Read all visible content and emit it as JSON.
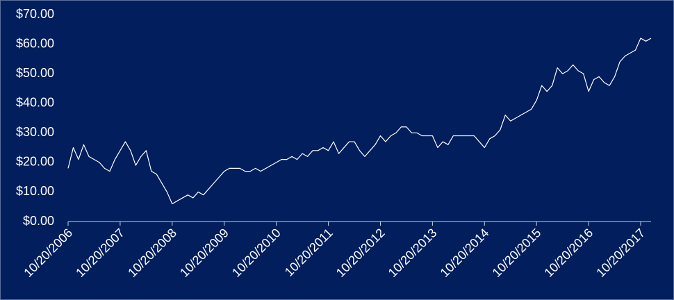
{
  "chart_data": {
    "type": "line",
    "color": "#ffffff",
    "x": [
      2006.8,
      2006.9,
      2007.0,
      2007.1,
      2007.2,
      2007.3,
      2007.4,
      2007.5,
      2007.6,
      2007.7,
      2007.8,
      2007.9,
      2008.0,
      2008.1,
      2008.2,
      2008.3,
      2008.4,
      2008.5,
      2008.6,
      2008.7,
      2008.8,
      2008.9,
      2009.0,
      2009.1,
      2009.2,
      2009.3,
      2009.4,
      2009.5,
      2009.6,
      2009.7,
      2009.8,
      2009.9,
      2010.0,
      2010.1,
      2010.2,
      2010.3,
      2010.4,
      2010.5,
      2010.6,
      2010.7,
      2010.8,
      2010.9,
      2011.0,
      2011.1,
      2011.2,
      2011.3,
      2011.4,
      2011.5,
      2011.6,
      2011.7,
      2011.8,
      2011.9,
      2012.0,
      2012.1,
      2012.2,
      2012.3,
      2012.4,
      2012.5,
      2012.6,
      2012.7,
      2012.8,
      2012.9,
      2013.0,
      2013.1,
      2013.2,
      2013.3,
      2013.4,
      2013.5,
      2013.6,
      2013.7,
      2013.8,
      2013.9,
      2014.0,
      2014.1,
      2014.2,
      2014.3,
      2014.4,
      2014.5,
      2014.6,
      2014.7,
      2014.8,
      2014.9,
      2015.0,
      2015.1,
      2015.2,
      2015.3,
      2015.4,
      2015.5,
      2015.6,
      2015.7,
      2015.8,
      2015.9,
      2016.0,
      2016.1,
      2016.2,
      2016.3,
      2016.4,
      2016.5,
      2016.6,
      2016.7,
      2016.8,
      2016.9,
      2017.0,
      2017.1,
      2017.2,
      2017.3,
      2017.4,
      2017.5,
      2017.6,
      2017.7,
      2017.8,
      2017.9,
      2018.0
    ],
    "values": [
      18,
      25,
      21,
      26,
      22,
      21,
      20,
      18,
      17,
      21,
      24,
      27,
      24,
      19,
      22,
      24,
      17,
      16,
      13,
      10,
      6,
      7,
      8,
      9,
      8,
      10,
      9,
      11,
      13,
      15,
      17,
      18,
      18,
      18,
      17,
      17,
      18,
      17,
      18,
      19,
      20,
      21,
      21,
      22,
      21,
      23,
      22,
      24,
      24,
      25,
      24,
      27,
      23,
      25,
      27,
      27,
      24,
      22,
      24,
      26,
      29,
      27,
      29,
      30,
      32,
      32,
      30,
      30,
      29,
      29,
      29,
      25,
      27,
      26,
      29,
      29,
      29,
      29,
      29,
      27,
      25,
      28,
      29,
      31,
      36,
      34,
      35,
      36,
      37,
      38,
      41,
      46,
      44,
      46,
      52,
      50,
      51,
      53,
      51,
      50,
      44,
      48,
      49,
      47,
      46,
      49,
      54,
      56,
      57,
      58,
      62,
      61,
      62
    ],
    "xlim": [
      2006.8,
      2018.0
    ],
    "xticks": [
      {
        "value": 2006.8,
        "label": "10/20/2006"
      },
      {
        "value": 2007.8,
        "label": "10/20/2007"
      },
      {
        "value": 2008.8,
        "label": "10/20/2008"
      },
      {
        "value": 2009.8,
        "label": "10/20/2009"
      },
      {
        "value": 2010.8,
        "label": "10/20/2010"
      },
      {
        "value": 2011.8,
        "label": "10/20/2011"
      },
      {
        "value": 2012.8,
        "label": "10/20/2012"
      },
      {
        "value": 2013.8,
        "label": "10/20/2013"
      },
      {
        "value": 2014.8,
        "label": "10/20/2014"
      },
      {
        "value": 2015.8,
        "label": "10/20/2015"
      },
      {
        "value": 2016.8,
        "label": "10/20/2016"
      },
      {
        "value": 2017.8,
        "label": "10/20/2017"
      }
    ],
    "ylim": [
      0,
      70
    ],
    "yticks": [
      {
        "value": 0,
        "label": "$0.00"
      },
      {
        "value": 10,
        "label": "$10.00"
      },
      {
        "value": 20,
        "label": "$20.00"
      },
      {
        "value": 30,
        "label": "$30.00"
      },
      {
        "value": 40,
        "label": "$40.00"
      },
      {
        "value": 50,
        "label": "$50.00"
      },
      {
        "value": 60,
        "label": "$60.00"
      },
      {
        "value": 70,
        "label": "$70.00"
      }
    ],
    "grid": false
  }
}
